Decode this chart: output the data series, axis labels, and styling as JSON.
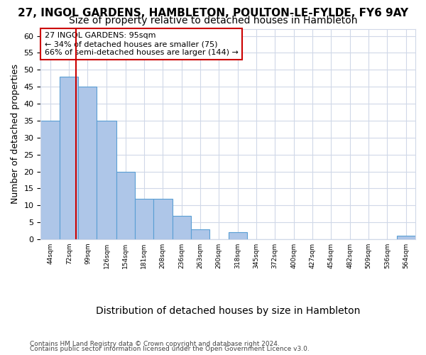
{
  "title_line1": "27, INGOL GARDENS, HAMBLETON, POULTON-LE-FYLDE, FY6 9AY",
  "title_line2": "Size of property relative to detached houses in Hambleton",
  "xlabel": "Distribution of detached houses by size in Hambleton",
  "ylabel": "Number of detached properties",
  "bar_edges": [
    44,
    72,
    99,
    126,
    154,
    181,
    208,
    236,
    263,
    290,
    318,
    345,
    372,
    400,
    427,
    454,
    482,
    509,
    536,
    564,
    591
  ],
  "bar_heights": [
    35,
    48,
    45,
    35,
    20,
    12,
    12,
    7,
    3,
    0,
    2,
    0,
    0,
    0,
    0,
    0,
    0,
    0,
    0,
    1
  ],
  "bar_color": "#aec6e8",
  "bar_edge_color": "#5a9fd4",
  "ylim": [
    0,
    62
  ],
  "yticks": [
    0,
    5,
    10,
    15,
    20,
    25,
    30,
    35,
    40,
    45,
    50,
    55,
    60
  ],
  "vline_x": 95,
  "vline_color": "#cc0000",
  "annotation_text": "27 INGOL GARDENS: 95sqm\n← 34% of detached houses are smaller (75)\n66% of semi-detached houses are larger (144) →",
  "annotation_box_color": "#cc0000",
  "annotation_text_color": "#000000",
  "footer_line1": "Contains HM Land Registry data © Crown copyright and database right 2024.",
  "footer_line2": "Contains public sector information licensed under the Open Government Licence v3.0.",
  "bg_color": "#ffffff",
  "grid_color": "#d0d8e8",
  "title_fontsize": 11,
  "subtitle_fontsize": 10,
  "xlabel_fontsize": 10,
  "ylabel_fontsize": 9
}
